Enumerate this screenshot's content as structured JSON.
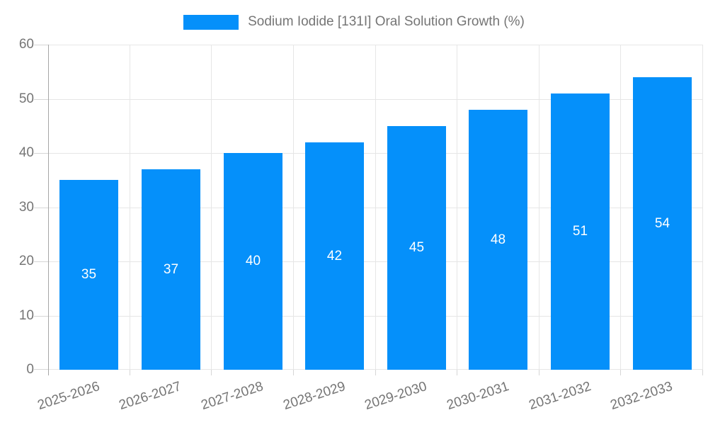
{
  "legend": {
    "label": "Sodium Iodide [131I] Oral Solution Growth (%)"
  },
  "chart_data": {
    "type": "bar",
    "title": "Sodium Iodide [131I] Oral Solution Growth (%)",
    "categories": [
      "2025-2026",
      "2026-2027",
      "2027-2028",
      "2028-2029",
      "2029-2030",
      "2030-2031",
      "2031-2032",
      "2032-2033"
    ],
    "values": [
      35,
      37,
      40,
      42,
      45,
      48,
      51,
      54
    ],
    "xlabel": "",
    "ylabel": "",
    "ylim": [
      0,
      60
    ],
    "yticks": [
      0,
      10,
      20,
      30,
      40,
      50,
      60
    ],
    "grid": true,
    "legend_position": "top",
    "bar_color": "#0590fa",
    "bar_label_color": "#ffffff",
    "axis_text_color": "#757575",
    "grid_color": "#e6e6e6",
    "axis_line_color": "#a6a6a6"
  }
}
